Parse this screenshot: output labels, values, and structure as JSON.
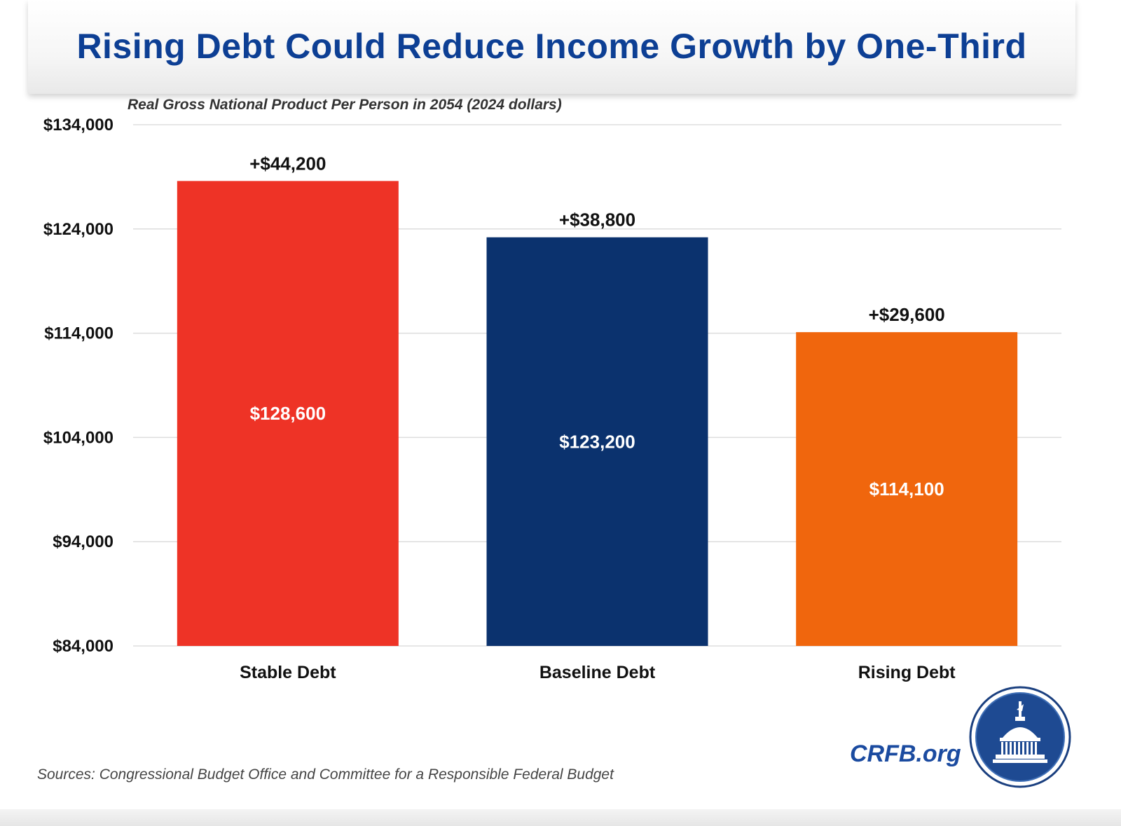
{
  "title": "Rising Debt Could Reduce Income Growth by One-Third",
  "sources": "Sources: Congressional Budget Office and Committee for a Responsible Federal Budget",
  "brand": "CRFB.org",
  "chart_data": {
    "type": "bar",
    "subtitle": "Real Gross National Product Per Person in 2054 (2024 dollars)",
    "categories": [
      "Stable Debt",
      "Baseline Debt",
      "Rising Debt"
    ],
    "values": [
      128600,
      123200,
      114100
    ],
    "value_labels": [
      "$128,600",
      "$123,200",
      "$114,100"
    ],
    "top_labels": [
      "+$44,200",
      "+$38,800",
      "+$29,600"
    ],
    "colors": [
      "#ee3326",
      "#0b326e",
      "#f0660d"
    ],
    "ylim": [
      84000,
      134000
    ],
    "yticks": [
      84000,
      94000,
      104000,
      114000,
      124000,
      134000
    ],
    "ytick_labels": [
      "$84,000",
      "$94,000",
      "$104,000",
      "$114,000",
      "$124,000",
      "$134,000"
    ],
    "grid": true
  }
}
